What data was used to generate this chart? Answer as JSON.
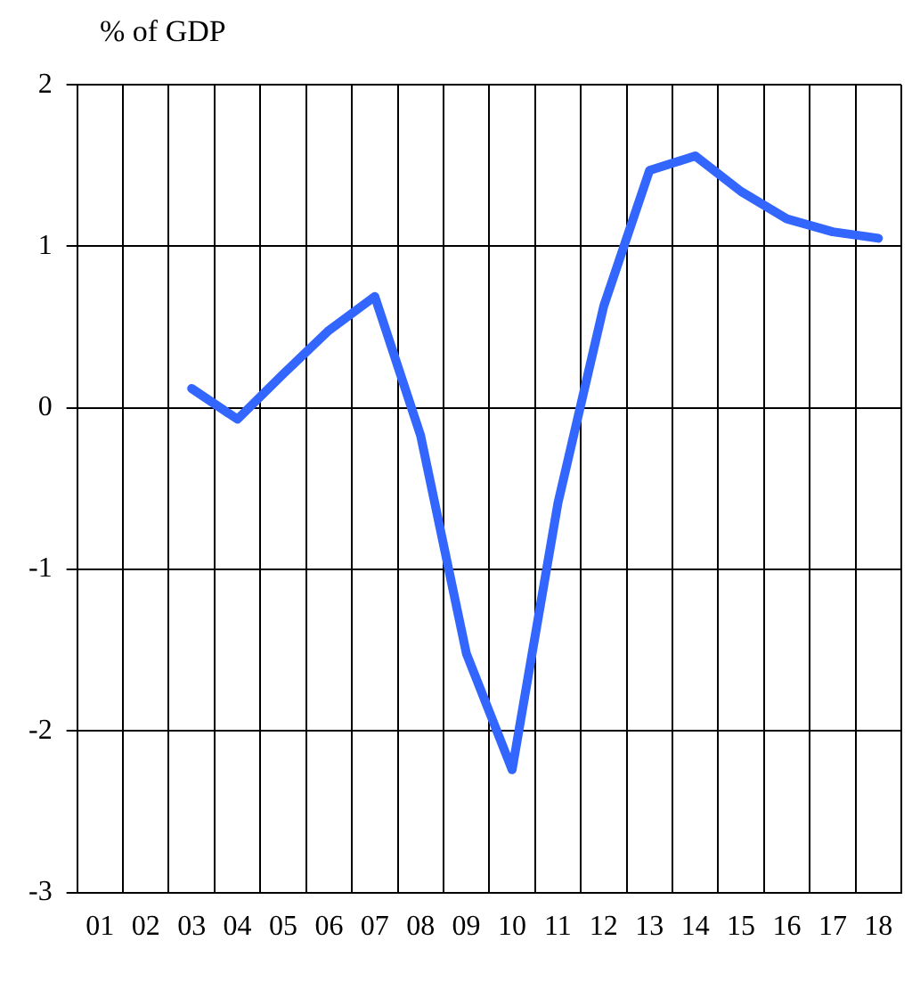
{
  "chart_data": {
    "type": "line",
    "ylabel": "% of GDP",
    "categories": [
      "01",
      "02",
      "03",
      "04",
      "05",
      "06",
      "07",
      "08",
      "09",
      "10",
      "11",
      "12",
      "13",
      "14",
      "15",
      "16",
      "17",
      "18"
    ],
    "series": [
      {
        "color": "#3366ff",
        "values": [
          null,
          null,
          0.12,
          -0.07,
          0.21,
          0.48,
          0.69,
          -0.17,
          -1.52,
          -2.24,
          -0.59,
          0.63,
          1.47,
          1.56,
          1.34,
          1.17,
          1.09,
          1.05
        ]
      }
    ],
    "ylim": [
      -3,
      2
    ],
    "yticks": [
      -3,
      -2,
      -1,
      0,
      1,
      2
    ],
    "grid": true,
    "legend": false,
    "marker": "none",
    "line_style": "solid"
  }
}
